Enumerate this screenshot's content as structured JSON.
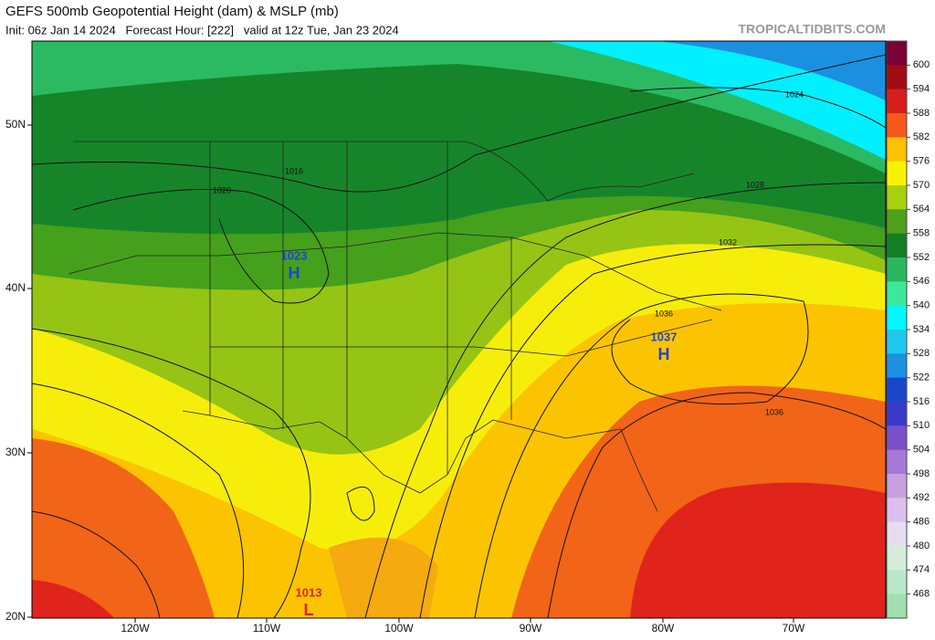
{
  "header": {
    "title": "GEFS 500mb Geopotential Height (dam) & MSLP (mb)",
    "subtitle": "Init: 06z Jan 14 2024   Forecast Hour: [222]   valid at 12z Tue, Jan 23 2024",
    "watermark": "TROPICALTIDBITS.COM"
  },
  "colorbar": {
    "labels": [
      "600",
      "594",
      "588",
      "582",
      "576",
      "570",
      "564",
      "558",
      "552",
      "546",
      "540",
      "534",
      "528",
      "522",
      "516",
      "510",
      "504",
      "498",
      "492",
      "486",
      "480",
      "474",
      "468"
    ]
  },
  "axes": {
    "longitudes": [
      "120W",
      "110W",
      "100W",
      "90W",
      "80W",
      "70W"
    ],
    "latitudes": [
      "50N",
      "40N",
      "30N",
      "20N"
    ]
  },
  "pressure_centers": [
    {
      "value": "1023",
      "type": "H"
    },
    {
      "value": "1037",
      "type": "H"
    },
    {
      "value": "1013",
      "type": "L"
    }
  ],
  "isobar_labels": [
    "1016",
    "1020",
    "1024",
    "1028",
    "1032",
    "1036",
    "1036"
  ]
}
